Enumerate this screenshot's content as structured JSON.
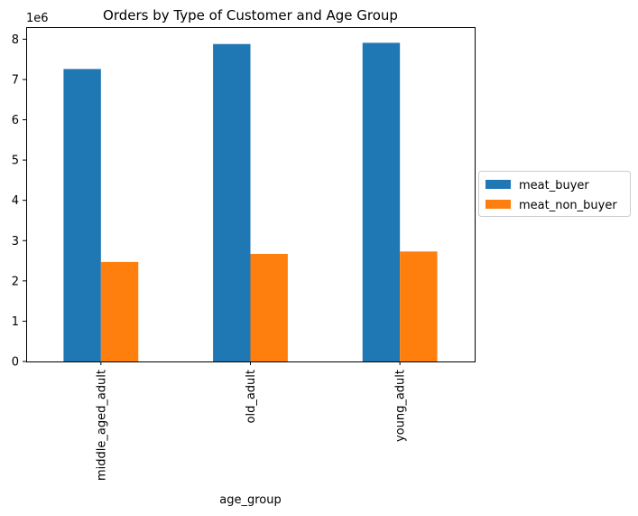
{
  "chart_data": {
    "type": "bar",
    "title": "Orders by Type of Customer and Age Group",
    "xlabel": "age_group",
    "ylabel": "",
    "offset_label": "1e6",
    "categories": [
      "middle_aged_adult",
      "old_adult",
      "young_adult"
    ],
    "series": [
      {
        "name": "meat_buyer",
        "color": "#1f77b4",
        "values": [
          7260000,
          7880000,
          7910000
        ]
      },
      {
        "name": "meat_non_buyer",
        "color": "#ff7f0e",
        "values": [
          2470000,
          2670000,
          2730000
        ]
      }
    ],
    "yticks": [
      0,
      1,
      2,
      3,
      4,
      5,
      6,
      7,
      8
    ],
    "ylim": [
      0,
      8300000
    ],
    "grid": false,
    "legend_position": "center-right outside"
  }
}
